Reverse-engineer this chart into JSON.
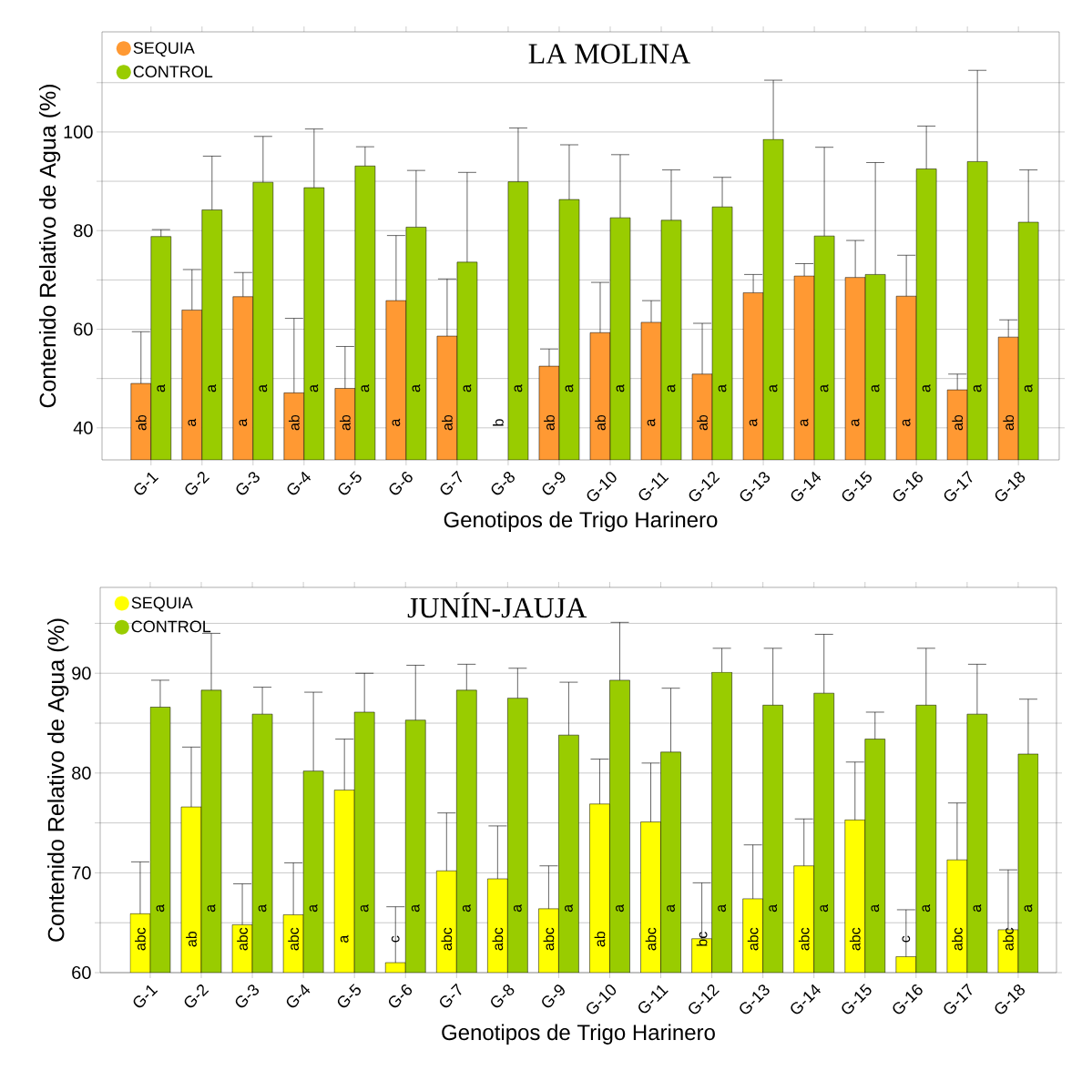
{
  "chart_data": [
    {
      "type": "bar",
      "title": "LA MOLINA",
      "xlabel": "Genotipos de Trigo Harinero",
      "ylabel": "Contenido Relativo de Agua (%)",
      "categories": [
        "G-1",
        "G-2",
        "G-3",
        "G-4",
        "G-5",
        "G-6",
        "G-7",
        "G-8",
        "G-9",
        "G-10",
        "G-11",
        "G-12",
        "G-13",
        "G-14",
        "G-15",
        "G-16",
        "G-17",
        "G-18"
      ],
      "ylim": [
        33.5,
        120.3
      ],
      "yticks": [
        40,
        {
          "value": 50,
          "label": null
        },
        60,
        {
          "value": 70,
          "label": null
        },
        80,
        {
          "value": 90,
          "label": null
        },
        100,
        {
          "value": 110,
          "label": null
        }
      ],
      "grid": "y",
      "legend": "top left",
      "series": [
        {
          "name": "SEQUIA",
          "color": "#ff9933",
          "values": [
            49.0,
            63.9,
            66.6,
            47.1,
            48.0,
            65.8,
            58.6,
            null,
            52.5,
            59.3,
            61.4,
            50.9,
            67.4,
            70.8,
            70.5,
            66.7,
            47.7,
            58.4
          ],
          "errors": [
            10.5,
            8.2,
            4.9,
            15.1,
            8.5,
            13.2,
            11.6,
            null,
            3.5,
            10.2,
            4.4,
            10.3,
            3.7,
            2.5,
            7.5,
            8.3,
            3.2,
            3.5
          ],
          "value_labels": [
            "ab",
            "a",
            "a",
            "ab",
            "ab",
            "a",
            "ab",
            "b",
            "ab",
            "ab",
            "a",
            "ab",
            "a",
            "a",
            "a",
            "a",
            "ab",
            "ab"
          ]
        },
        {
          "name": "CONTROL",
          "color": "#99cc00",
          "values": [
            78.8,
            84.2,
            89.8,
            88.7,
            93.1,
            80.7,
            73.6,
            89.9,
            86.3,
            82.6,
            82.1,
            84.8,
            98.5,
            78.9,
            71.1,
            92.5,
            94.0,
            81.7
          ],
          "errors": [
            1.4,
            10.9,
            9.3,
            11.9,
            3.9,
            11.5,
            18.2,
            10.9,
            11.1,
            12.8,
            10.2,
            6.0,
            12.0,
            18.0,
            22.7,
            8.7,
            18.5,
            10.6
          ],
          "value_labels": [
            "a",
            "a",
            "a",
            "a",
            "a",
            "a",
            "a",
            "a",
            "a",
            "a",
            "a",
            "a",
            "a",
            "a",
            "a",
            "a",
            "a",
            "a"
          ]
        }
      ]
    },
    {
      "type": "bar",
      "title": "JUNÍN-JAUJA",
      "xlabel": "Genotipos de Trigo Harinero",
      "ylabel": "Contenido Relativo de Agua (%)",
      "categories": [
        "G-1",
        "G-2",
        "G-3",
        "G-4",
        "G-5",
        "G-6",
        "G-7",
        "G-8",
        "G-9",
        "G-10",
        "G-11",
        "G-12",
        "G-13",
        "G-14",
        "G-15",
        "G-16",
        "G-17",
        "G-18"
      ],
      "ylim": [
        60,
        98.6
      ],
      "yticks": [
        60,
        {
          "value": 65,
          "label": null
        },
        70,
        {
          "value": 75,
          "label": null
        },
        80,
        {
          "value": 85,
          "label": null
        },
        90,
        {
          "value": 95,
          "label": null
        }
      ],
      "grid": "y",
      "legend": "top left",
      "series": [
        {
          "name": "SEQUIA",
          "color": "#ffff00",
          "values": [
            65.9,
            76.6,
            64.8,
            65.8,
            78.3,
            61.0,
            70.2,
            69.4,
            66.4,
            76.9,
            75.1,
            63.4,
            67.4,
            70.7,
            75.3,
            61.6,
            71.3,
            64.3
          ],
          "errors": [
            5.2,
            6.0,
            4.1,
            5.2,
            5.1,
            5.6,
            5.8,
            5.3,
            4.3,
            4.5,
            5.9,
            5.6,
            5.4,
            4.7,
            5.8,
            4.7,
            5.7,
            6.0
          ],
          "value_labels": [
            "abc",
            "ab",
            "abc",
            "abc",
            "a",
            "c",
            "abc",
            "abc",
            "abc",
            "ab",
            "abc",
            "bc",
            "abc",
            "abc",
            "abc",
            "c",
            "abc",
            "abc"
          ]
        },
        {
          "name": "CONTROL",
          "color": "#99cc00",
          "values": [
            86.6,
            88.3,
            85.9,
            80.2,
            86.1,
            85.3,
            88.3,
            87.5,
            83.8,
            89.3,
            82.1,
            90.1,
            86.8,
            88.0,
            83.4,
            86.8,
            85.9,
            81.9
          ],
          "errors": [
            2.7,
            5.7,
            2.7,
            7.9,
            3.9,
            5.5,
            2.6,
            3.0,
            5.3,
            5.8,
            6.4,
            2.4,
            5.7,
            5.9,
            2.7,
            5.7,
            5.0,
            5.5
          ],
          "value_labels": [
            "a",
            "a",
            "a",
            "a",
            "a",
            "a",
            "a",
            "a",
            "a",
            "a",
            "a",
            "a",
            "a",
            "a",
            "a",
            "a",
            "a",
            "a"
          ]
        }
      ]
    }
  ]
}
